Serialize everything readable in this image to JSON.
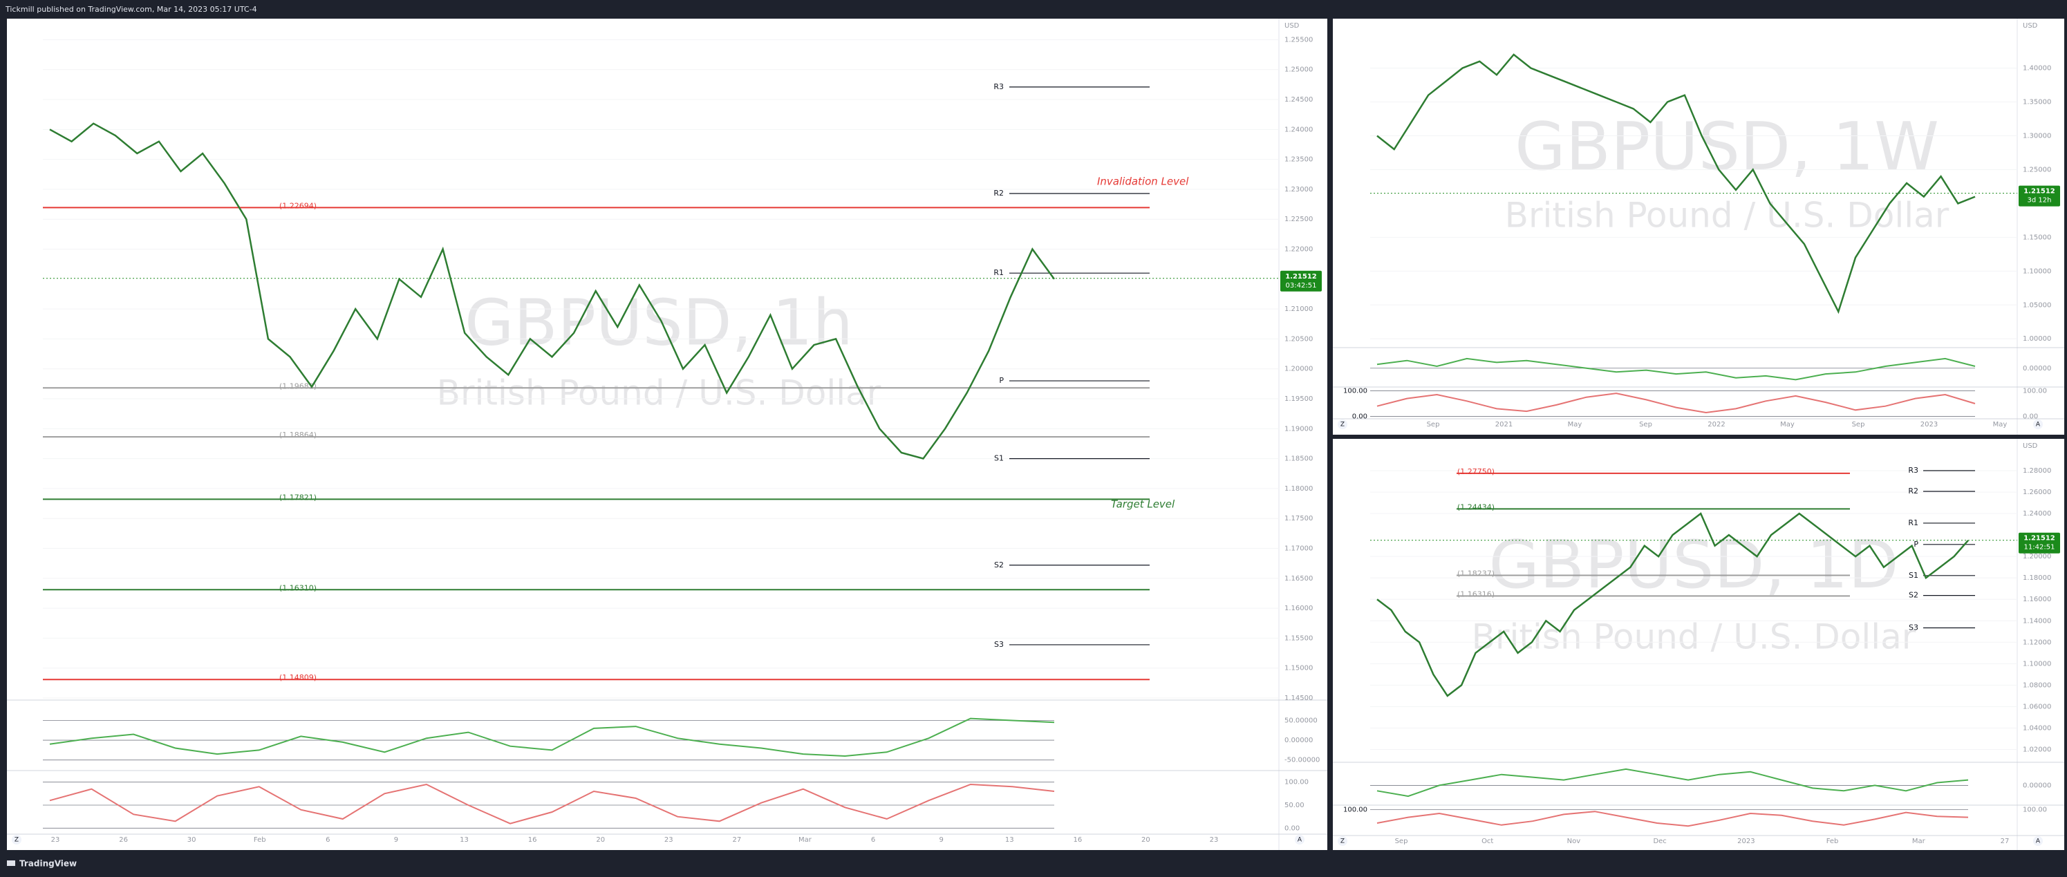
{
  "header": {
    "publisher": "Tickmill published on TradingView.com, Mar 14, 2023 05:17 UTC-4"
  },
  "footer": {
    "brand": "TradingView"
  },
  "panels": [
    {
      "watermark": "GBPUSD, 1h",
      "subtitle": "British Pound / U.S. Dollar",
      "currency": "USD",
      "ylim": [
        1.145,
        1.2584
      ],
      "yticks": [
        {
          "value": 1.145,
          "label": "1.14500"
        },
        {
          "value": 1.15,
          "label": "1.15000"
        },
        {
          "value": 1.155,
          "label": "1.15500"
        },
        {
          "value": 1.16,
          "label": "1.16000"
        },
        {
          "value": 1.165,
          "label": "1.16500"
        },
        {
          "value": 1.17,
          "label": "1.17000"
        },
        {
          "value": 1.175,
          "label": "1.17500"
        },
        {
          "value": 1.18,
          "label": "1.18000"
        },
        {
          "value": 1.185,
          "label": "1.18500"
        },
        {
          "value": 1.19,
          "label": "1.19000"
        },
        {
          "value": 1.195,
          "label": "1.19500"
        },
        {
          "value": 1.2,
          "label": "1.20000"
        },
        {
          "value": 1.205,
          "label": "1.20500"
        },
        {
          "value": 1.21,
          "label": "1.21000"
        },
        {
          "value": 1.22,
          "label": "1.22000"
        },
        {
          "value": 1.225,
          "label": "1.22500"
        },
        {
          "value": 1.23,
          "label": "1.23000"
        },
        {
          "value": 1.235,
          "label": "1.23500"
        },
        {
          "value": 1.24,
          "label": "1.24000"
        },
        {
          "value": 1.245,
          "label": "1.24500"
        },
        {
          "value": 1.25,
          "label": "1.25000"
        },
        {
          "value": 1.255,
          "label": "1.25500"
        }
      ],
      "price_label": {
        "value": 1.21512,
        "label": "1.21512"
      },
      "countdown": "03:42:51",
      "levels": [
        {
          "value": 1.22694,
          "label": "(1.22694)",
          "color": "#e53935"
        },
        {
          "value": 1.19682,
          "label": "(1.19682)",
          "color": "#9e9e9e"
        },
        {
          "value": 1.18864,
          "label": "(1.18864)",
          "color": "#9e9e9e"
        },
        {
          "value": 1.17821,
          "label": "(1.17821)",
          "color": "#2e7d32"
        },
        {
          "value": 1.1631,
          "label": "(1.16310)",
          "color": "#2e7d32"
        },
        {
          "value": 1.14809,
          "label": "(1.14809)",
          "color": "#e53935"
        }
      ],
      "pivots": [
        {
          "value": 1.2471,
          "label": "R3"
        },
        {
          "value": 1.2293,
          "label": "R2"
        },
        {
          "value": 1.216,
          "label": "R1"
        },
        {
          "value": 1.198,
          "label": "P"
        },
        {
          "value": 1.185,
          "label": "S1"
        },
        {
          "value": 1.1672,
          "label": "S2"
        },
        {
          "value": 1.1539,
          "label": "S3"
        }
      ],
      "annotations": [
        {
          "text": "Invalidation Level",
          "color": "#e53935"
        },
        {
          "text": "Target Level",
          "color": "#2e7d32"
        }
      ],
      "closes": [
        1.24,
        1.238,
        1.241,
        1.239,
        1.236,
        1.238,
        1.233,
        1.236,
        1.231,
        1.225,
        1.205,
        1.202,
        1.197,
        1.203,
        1.21,
        1.205,
        1.215,
        1.212,
        1.22,
        1.206,
        1.202,
        1.199,
        1.205,
        1.202,
        1.206,
        1.213,
        1.207,
        1.214,
        1.208,
        1.2,
        1.204,
        1.196,
        1.202,
        1.209,
        1.2,
        1.204,
        1.205,
        1.197,
        1.19,
        1.186,
        1.185,
        1.19,
        1.196,
        1.203,
        1.212,
        1.22,
        1.215
      ],
      "osc": {
        "ylim": [
          -68,
          98
        ],
        "ticks": [
          {
            "value": 50,
            "label": "50.00000"
          },
          {
            "value": 0,
            "label": "0.00000"
          },
          {
            "value": -50,
            "label": "-50.00000"
          }
        ],
        "values": [
          -10,
          5,
          15,
          -20,
          -35,
          -25,
          10,
          -5,
          -30,
          5,
          20,
          -15,
          -25,
          30,
          35,
          5,
          -10,
          -20,
          -35,
          -40,
          -30,
          5,
          55,
          50,
          45
        ]
      },
      "stoch": {
        "ylim": [
          -10,
          110
        ],
        "ticks": [
          {
            "value": 100,
            "label": "100.00"
          },
          {
            "value": 50,
            "label": "50.00"
          },
          {
            "value": 0,
            "label": "0.00"
          }
        ],
        "values": [
          60,
          85,
          30,
          15,
          70,
          90,
          40,
          20,
          75,
          95,
          50,
          10,
          35,
          80,
          65,
          25,
          15,
          55,
          85,
          45,
          20,
          60,
          95,
          90,
          80
        ]
      },
      "time_labels": [
        "23",
        "26",
        "30",
        "Feb",
        "6",
        "9",
        "13",
        "16",
        "20",
        "23",
        "27",
        "Mar",
        "6",
        "9",
        "13",
        "16",
        "20",
        "23"
      ],
      "scale_buttons": [
        "Z",
        "A"
      ]
    },
    {
      "watermark": "GBPUSD, 1W",
      "subtitle": "British Pound / U.S. Dollar",
      "currency": "USD",
      "ylim": [
        0.99,
        1.47
      ],
      "yticks": [
        {
          "value": 1.0,
          "label": "1.00000"
        },
        {
          "value": 1.05,
          "label": "1.05000"
        },
        {
          "value": 1.1,
          "label": "1.10000"
        },
        {
          "value": 1.15,
          "label": "1.15000"
        },
        {
          "value": 1.25,
          "label": "1.25000"
        },
        {
          "value": 1.3,
          "label": "1.30000"
        },
        {
          "value": 1.35,
          "label": "1.35000"
        },
        {
          "value": 1.4,
          "label": "1.40000"
        }
      ],
      "price_label": {
        "value": 1.21512,
        "label": "1.21512"
      },
      "countdown": "3d 12h",
      "closes": [
        1.3,
        1.28,
        1.32,
        1.36,
        1.38,
        1.4,
        1.41,
        1.39,
        1.42,
        1.4,
        1.39,
        1.38,
        1.37,
        1.36,
        1.35,
        1.34,
        1.32,
        1.35,
        1.36,
        1.3,
        1.25,
        1.22,
        1.25,
        1.2,
        1.17,
        1.14,
        1.09,
        1.04,
        1.12,
        1.16,
        1.2,
        1.23,
        1.21,
        1.24,
        1.2,
        1.21
      ],
      "osc": {
        "ylim": [
          -0.08,
          0.1
        ],
        "ticks": [
          {
            "value": 0,
            "label": "0.00000"
          }
        ],
        "values": [
          0.02,
          0.04,
          0.01,
          0.05,
          0.03,
          0.04,
          0.02,
          0,
          -0.02,
          -0.01,
          -0.03,
          -0.02,
          -0.05,
          -0.04,
          -0.06,
          -0.03,
          -0.02,
          0.01,
          0.03,
          0.05,
          0.01
        ]
      },
      "stoch": {
        "ylim": [
          -20,
          120
        ],
        "ticks": [
          {
            "value": 100,
            "label": "100.00"
          },
          {
            "value": 0,
            "label": "0.00"
          }
        ],
        "left_ticks": [
          {
            "value": 100,
            "label": "100.00"
          },
          {
            "value": 0,
            "label": "0.00"
          }
        ],
        "values": [
          40,
          70,
          85,
          60,
          30,
          20,
          45,
          75,
          90,
          65,
          35,
          15,
          30,
          60,
          80,
          55,
          25,
          40,
          70,
          85,
          50
        ]
      },
      "time_labels": [
        "Sep",
        "2021",
        "May",
        "Sep",
        "2022",
        "May",
        "Sep",
        "2023",
        "May"
      ],
      "scale_buttons": [
        "Z",
        "A"
      ]
    },
    {
      "watermark": "GBPUSD, 1D",
      "subtitle": "British Pound / U.S. Dollar",
      "currency": "USD",
      "ylim": [
        1.01,
        1.3
      ],
      "yticks": [
        {
          "value": 1.02,
          "label": "1.02000"
        },
        {
          "value": 1.04,
          "label": "1.04000"
        },
        {
          "value": 1.06,
          "label": "1.06000"
        },
        {
          "value": 1.08,
          "label": "1.08000"
        },
        {
          "value": 1.1,
          "label": "1.10000"
        },
        {
          "value": 1.12,
          "label": "1.12000"
        },
        {
          "value": 1.14,
          "label": "1.14000"
        },
        {
          "value": 1.16,
          "label": "1.16000"
        },
        {
          "value": 1.18,
          "label": "1.18000"
        },
        {
          "value": 1.2,
          "label": "1.20000"
        },
        {
          "value": 1.24,
          "label": "1.24000"
        },
        {
          "value": 1.26,
          "label": "1.26000"
        },
        {
          "value": 1.28,
          "label": "1.28000"
        }
      ],
      "price_label": {
        "value": 1.21512,
        "label": "1.21512"
      },
      "countdown": "11:42:51",
      "levels": [
        {
          "value": 1.2775,
          "label": "(1.27750)",
          "color": "#e53935"
        },
        {
          "value": 1.24434,
          "label": "(1.24434)",
          "color": "#2e7d32"
        },
        {
          "value": 1.18237,
          "label": "(1.18237)",
          "color": "#9e9e9e"
        },
        {
          "value": 1.16316,
          "label": "(1.16316)",
          "color": "#9e9e9e"
        }
      ],
      "pivots": [
        {
          "value": 1.28,
          "label": "R3"
        },
        {
          "value": 1.2607,
          "label": "R2"
        },
        {
          "value": 1.2311,
          "label": "R1"
        },
        {
          "value": 1.2112,
          "label": "P"
        },
        {
          "value": 1.1822,
          "label": "S1"
        },
        {
          "value": 1.1636,
          "label": "S2"
        },
        {
          "value": 1.1334,
          "label": "S3"
        }
      ],
      "closes": [
        1.16,
        1.15,
        1.13,
        1.12,
        1.09,
        1.07,
        1.08,
        1.11,
        1.12,
        1.13,
        1.11,
        1.12,
        1.14,
        1.13,
        1.15,
        1.16,
        1.17,
        1.18,
        1.19,
        1.21,
        1.2,
        1.22,
        1.23,
        1.24,
        1.21,
        1.22,
        1.21,
        1.2,
        1.22,
        1.23,
        1.24,
        1.23,
        1.22,
        1.21,
        1.2,
        1.21,
        1.19,
        1.2,
        1.21,
        1.18,
        1.19,
        1.2,
        1.215
      ],
      "osc": {
        "ylim": [
          -0.03,
          0.04
        ],
        "ticks": [
          {
            "value": 0,
            "label": "0.00000"
          }
        ],
        "values": [
          -0.01,
          -0.02,
          0,
          0.01,
          0.02,
          0.015,
          0.01,
          0.02,
          0.03,
          0.02,
          0.01,
          0.02,
          0.025,
          0.01,
          -0.005,
          -0.01,
          0,
          -0.01,
          0.005,
          0.01
        ]
      },
      "stoch": {
        "ylim": [
          -20,
          130
        ],
        "ticks": [
          {
            "value": 100,
            "label": "100.00"
          }
        ],
        "left_ticks": [
          {
            "value": 100,
            "label": "100.00"
          }
        ],
        "values": [
          30,
          60,
          80,
          50,
          20,
          40,
          75,
          90,
          60,
          30,
          15,
          45,
          80,
          70,
          40,
          20,
          50,
          85,
          65,
          60
        ]
      },
      "time_labels": [
        "Sep",
        "Oct",
        "Nov",
        "Dec",
        "2023",
        "Feb",
        "Mar",
        "27"
      ],
      "scale_buttons": [
        "Z",
        "A"
      ]
    }
  ]
}
